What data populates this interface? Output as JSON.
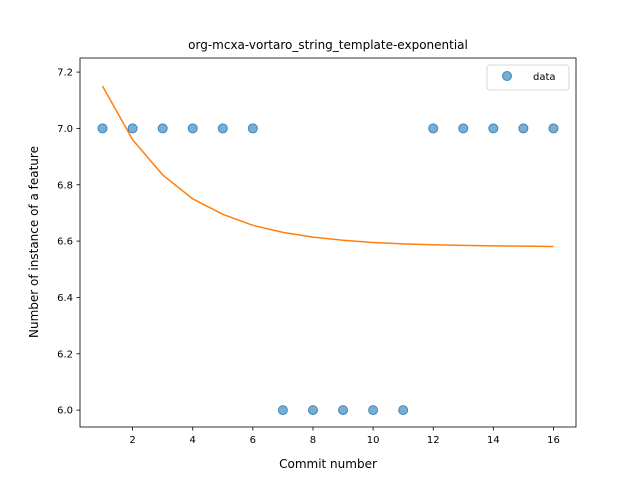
{
  "chart_data": {
    "type": "scatter",
    "title": "org-mcxa-vortaro_string_template-exponential",
    "xlabel": "Commit number",
    "ylabel": "Number of instance of a feature",
    "xlim": [
      0.25,
      16.75
    ],
    "ylim": [
      5.94,
      7.25
    ],
    "xticks": [
      2,
      4,
      6,
      8,
      10,
      12,
      14,
      16
    ],
    "yticks": [
      6.0,
      6.2,
      6.4,
      6.6,
      6.8,
      7.0,
      7.2
    ],
    "xtick_labels": [
      "2",
      "4",
      "6",
      "8",
      "10",
      "12",
      "14",
      "16"
    ],
    "ytick_labels": [
      "6.0",
      "6.2",
      "6.4",
      "6.6",
      "6.8",
      "7.0",
      "7.2"
    ],
    "legend": {
      "position": "top-right",
      "entries": [
        "data"
      ]
    },
    "grid": false,
    "series": [
      {
        "name": "data",
        "kind": "scatter",
        "color": "#1f77b4",
        "x": [
          1,
          2,
          3,
          4,
          5,
          6,
          7,
          8,
          9,
          10,
          11,
          12,
          13,
          14,
          15,
          16
        ],
        "y": [
          7.0,
          7.0,
          7.0,
          7.0,
          7.0,
          7.0,
          6.0,
          6.0,
          6.0,
          6.0,
          6.0,
          7.0,
          7.0,
          7.0,
          7.0,
          7.0
        ]
      },
      {
        "kind": "line",
        "color": "#ff7f0e",
        "x": [
          1,
          2,
          3,
          4,
          5,
          6,
          7,
          8,
          9,
          10,
          11,
          12,
          13,
          14,
          15,
          16
        ],
        "y": [
          7.15,
          6.96,
          6.835,
          6.75,
          6.695,
          6.656,
          6.631,
          6.614,
          6.603,
          6.595,
          6.59,
          6.587,
          6.585,
          6.583,
          6.582,
          6.581
        ]
      }
    ]
  }
}
